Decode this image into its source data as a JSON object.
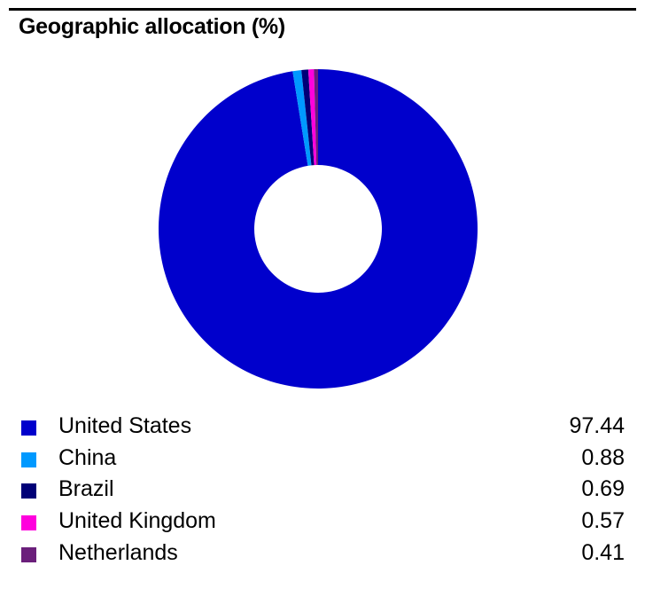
{
  "chart_data": {
    "type": "pie",
    "variant": "donut",
    "title": "Geographic allocation (%)",
    "categories": [
      "United States",
      "China",
      "Brazil",
      "United Kingdom",
      "Netherlands"
    ],
    "values": [
      97.44,
      0.88,
      0.69,
      0.57,
      0.41
    ],
    "colors": [
      "#0000CC",
      "#0099FF",
      "#000077",
      "#FF00DD",
      "#6B1F7B"
    ],
    "legend_position": "bottom"
  }
}
